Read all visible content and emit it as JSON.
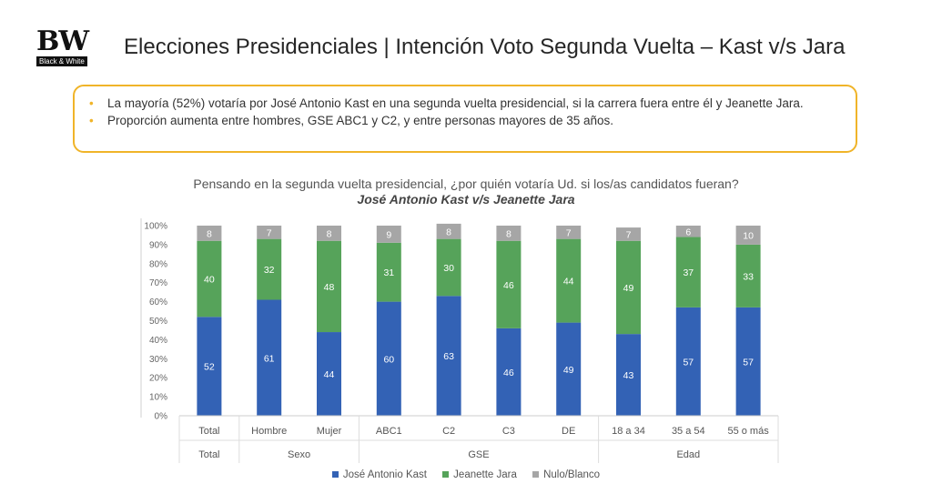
{
  "logo": {
    "mark": "BW",
    "subtitle": "Black & White"
  },
  "title": "Elecciones Presidenciales | Intención Voto Segunda Vuelta – Kast v/s Jara",
  "bullets": [
    "La mayoría (52%) votaría por José Antonio Kast en una segunda vuelta presidencial, si la carrera fuera entre él y Jeanette Jara.",
    "Proporción aumenta entre hombres, GSE ABC1 y C2, y entre personas mayores de 35 años."
  ],
  "question": "Pensando en la segunda vuelta presidencial, ¿por quién votaría Ud. si los/as candidatos fueran?",
  "question_sub": "José Antonio Kast v/s Jeanette Jara",
  "colors": {
    "kast": "#3362b5",
    "jara": "#56a35a",
    "nulo": "#a6a6a6",
    "accent": "#f0b429"
  },
  "chart_data": {
    "type": "bar",
    "stacked": true,
    "categories": [
      "Total",
      "Hombre",
      "Mujer",
      "ABC1",
      "C2",
      "C3",
      "DE",
      "18 a 34",
      "35 a 54",
      "55 o más"
    ],
    "groups": [
      {
        "label": "Total",
        "count": 1
      },
      {
        "label": "Sexo",
        "count": 2
      },
      {
        "label": "GSE",
        "count": 4
      },
      {
        "label": "Edad",
        "count": 3
      }
    ],
    "series": [
      {
        "name": "José Antonio Kast",
        "color": "#3362b5",
        "values": [
          52,
          61,
          44,
          60,
          63,
          46,
          49,
          43,
          57,
          57
        ]
      },
      {
        "name": "Jeanette Jara",
        "color": "#56a35a",
        "values": [
          40,
          32,
          48,
          31,
          30,
          46,
          44,
          49,
          37,
          33
        ]
      },
      {
        "name": "Nulo/Blanco",
        "color": "#a6a6a6",
        "values": [
          8,
          7,
          8,
          9,
          8,
          8,
          7,
          7,
          6,
          10
        ]
      }
    ],
    "yticks": [
      "0%",
      "10%",
      "20%",
      "30%",
      "40%",
      "50%",
      "60%",
      "70%",
      "80%",
      "90%",
      "100%"
    ],
    "ylim": [
      0,
      100
    ],
    "legend_position": "bottom"
  }
}
